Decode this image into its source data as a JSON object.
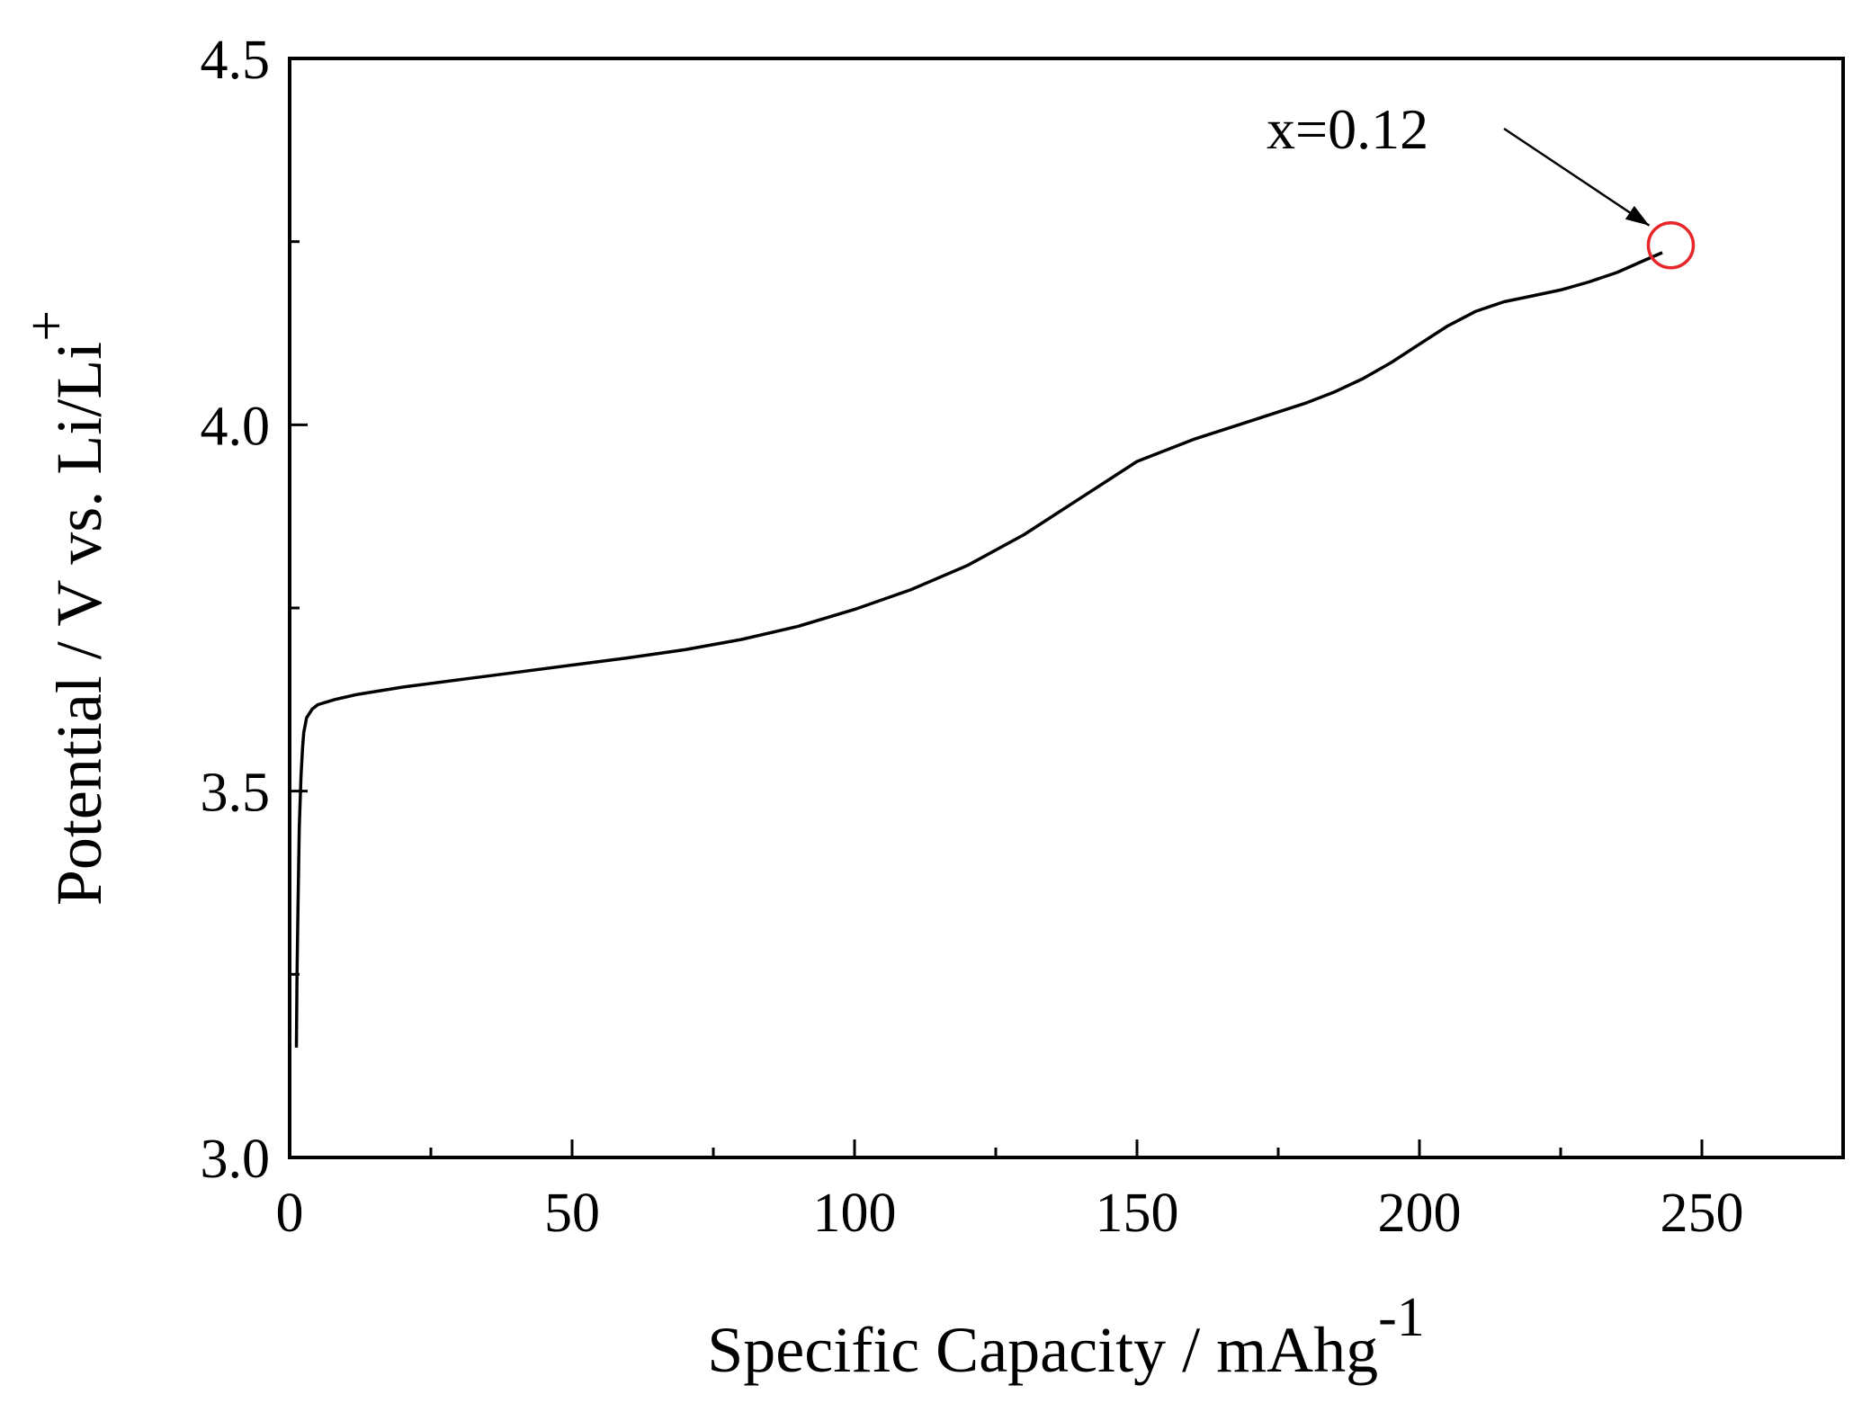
{
  "chart_data": {
    "type": "line",
    "title": "",
    "xlabel": "Specific Capacity / mAhg",
    "xlabel_sup": "-1",
    "ylabel": "Potential / V vs. Li/Li",
    "ylabel_sup": "+",
    "xlim": [
      0,
      275
    ],
    "ylim": [
      3.0,
      4.5
    ],
    "x_ticks": [
      0,
      50,
      100,
      150,
      200,
      250
    ],
    "x_tick_labels": [
      "0",
      "50",
      "100",
      "150",
      "200",
      "250"
    ],
    "x_minor_ticks": [
      25,
      75,
      125,
      175,
      225
    ],
    "y_ticks": [
      3.0,
      3.5,
      4.0,
      4.5
    ],
    "y_tick_labels": [
      "3.0",
      "3.5",
      "4.0",
      "4.5"
    ],
    "y_minor_ticks": [
      3.25,
      3.75,
      4.25
    ],
    "grid": false,
    "line_color": "#000000",
    "series": [
      {
        "x": [
          1.2,
          1.3,
          1.5,
          1.7,
          2.0,
          2.3,
          2.5,
          3,
          4,
          5,
          8,
          12,
          20,
          30,
          40,
          50,
          60,
          70,
          80,
          90,
          100,
          110,
          120,
          130,
          140,
          150,
          160,
          170,
          180,
          185,
          190,
          195,
          200,
          205,
          210,
          215,
          220,
          225,
          230,
          235,
          240,
          243
        ],
        "y": [
          3.15,
          3.25,
          3.35,
          3.45,
          3.52,
          3.56,
          3.58,
          3.6,
          3.612,
          3.618,
          3.625,
          3.632,
          3.642,
          3.652,
          3.662,
          3.672,
          3.682,
          3.693,
          3.707,
          3.725,
          3.748,
          3.775,
          3.808,
          3.85,
          3.9,
          3.95,
          3.98,
          4.005,
          4.03,
          4.045,
          4.063,
          4.085,
          4.11,
          4.135,
          4.155,
          4.168,
          4.176,
          4.184,
          4.195,
          4.208,
          4.225,
          4.235
        ]
      }
    ],
    "annotation": {
      "text": "x=0.12",
      "marker_x": 244.5,
      "marker_y": 4.245,
      "marker_color": "#e8262a"
    }
  }
}
